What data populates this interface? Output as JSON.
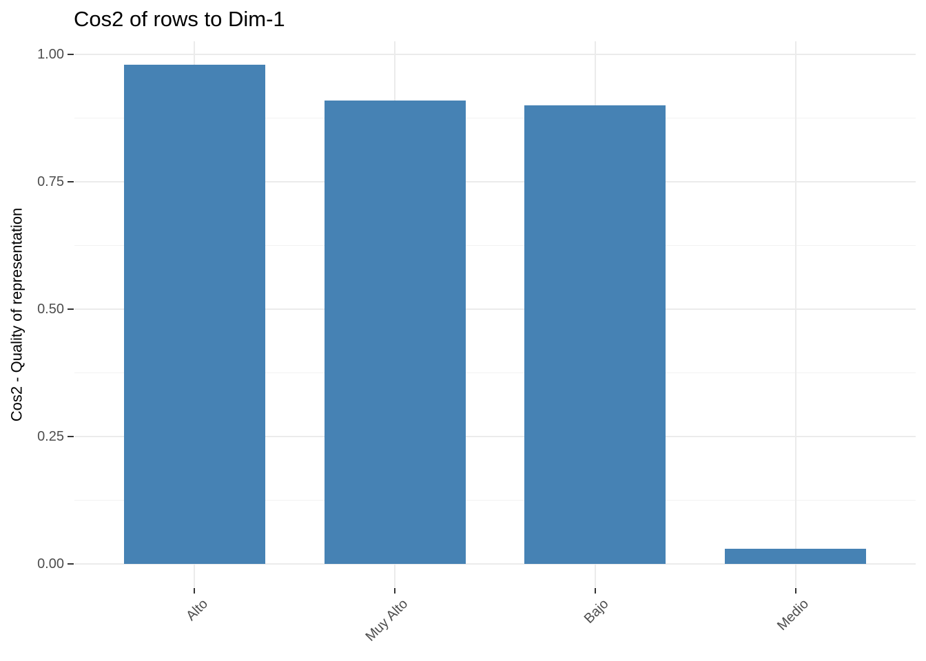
{
  "chart_data": {
    "type": "bar",
    "title": "Cos2 of rows to Dim-1",
    "xlabel": "",
    "ylabel": "Cos2 - Quality of representation",
    "categories": [
      "Alto",
      "Muy Alto",
      "Bajo",
      "Medio"
    ],
    "values": [
      0.98,
      0.91,
      0.9,
      0.03
    ],
    "ylim": [
      0,
      1.03
    ],
    "yticks": [
      0,
      0.25,
      0.5,
      0.75,
      1
    ],
    "ytick_labels": [
      "0.00",
      "0.25",
      "0.50",
      "0.75",
      "1.00"
    ],
    "yticks_minor": [
      0.125,
      0.375,
      0.625,
      0.875
    ],
    "grid": "major+minor",
    "legend_position": "none",
    "bar_color": "#4682B4",
    "colors": {
      "grid_major": "#EBEBEB",
      "grid_minor": "#F2F2F2",
      "tick": "#333333",
      "axis_text": "#4D4D4D",
      "title_text": "#000000",
      "background": "#FFFFFF"
    }
  }
}
